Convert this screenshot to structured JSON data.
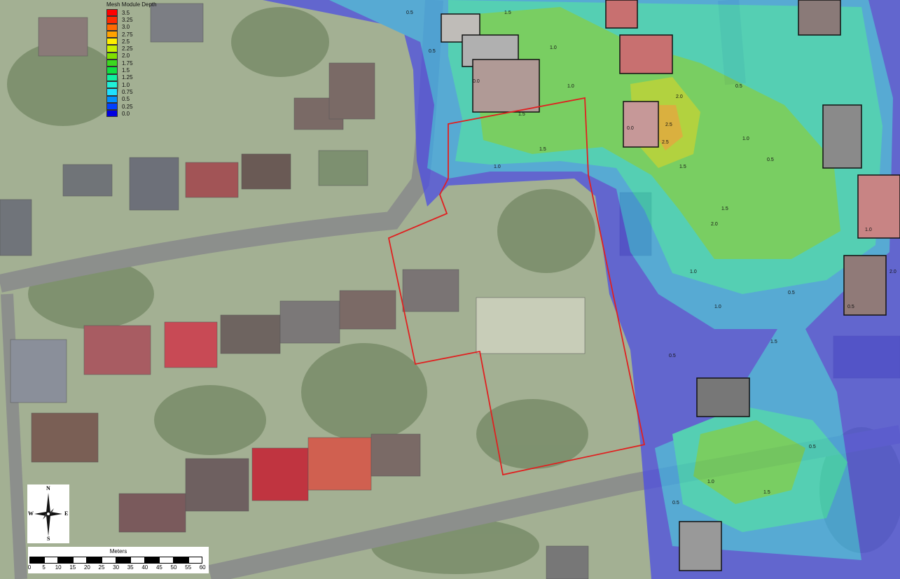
{
  "legend": {
    "title": "Mesh Module Depth",
    "items": [
      {
        "label": "3.5",
        "color": "#ff0000"
      },
      {
        "label": "3.25",
        "color": "#ff2a00"
      },
      {
        "label": "3.0",
        "color": "#ff6a00"
      },
      {
        "label": "2.75",
        "color": "#ffa200"
      },
      {
        "label": "2.5",
        "color": "#ffee00"
      },
      {
        "label": "2.25",
        "color": "#c8f000"
      },
      {
        "label": "2.0",
        "color": "#7ee000"
      },
      {
        "label": "1.75",
        "color": "#3cd820"
      },
      {
        "label": "1.5",
        "color": "#10e040"
      },
      {
        "label": "1.25",
        "color": "#10f0a0"
      },
      {
        "label": "1.0",
        "color": "#20f0d8"
      },
      {
        "label": "0.75",
        "color": "#20e0ff"
      },
      {
        "label": "0.5",
        "color": "#0090ff"
      },
      {
        "label": "0.25",
        "color": "#0040ff"
      },
      {
        "label": "0.0",
        "color": "#0000e0"
      }
    ]
  },
  "compass": {
    "n": "N",
    "s": "S",
    "e": "E",
    "w": "W"
  },
  "scalebar": {
    "title": "Meters",
    "ticks": [
      "0",
      "5",
      "10",
      "15",
      "20",
      "25",
      "30",
      "35",
      "40",
      "45",
      "50",
      "55",
      "60"
    ]
  },
  "site_boundary_color": "#e02020",
  "contour_labels": [
    "0.5",
    "1.5",
    "1.0",
    "0.5",
    "1.0",
    "1.5",
    "2.0",
    "2.5",
    "2.5",
    "1.5",
    "1.0",
    "0.5",
    "2.0",
    "1.5",
    "1.0",
    "0.5",
    "1.5",
    "1.0",
    "0.5",
    "0.5",
    "1.0",
    "0.0",
    "0.0",
    "1.5",
    "2.0",
    "1.0",
    "0.5",
    "0.5",
    "1.5",
    "1.0",
    "0.5"
  ]
}
